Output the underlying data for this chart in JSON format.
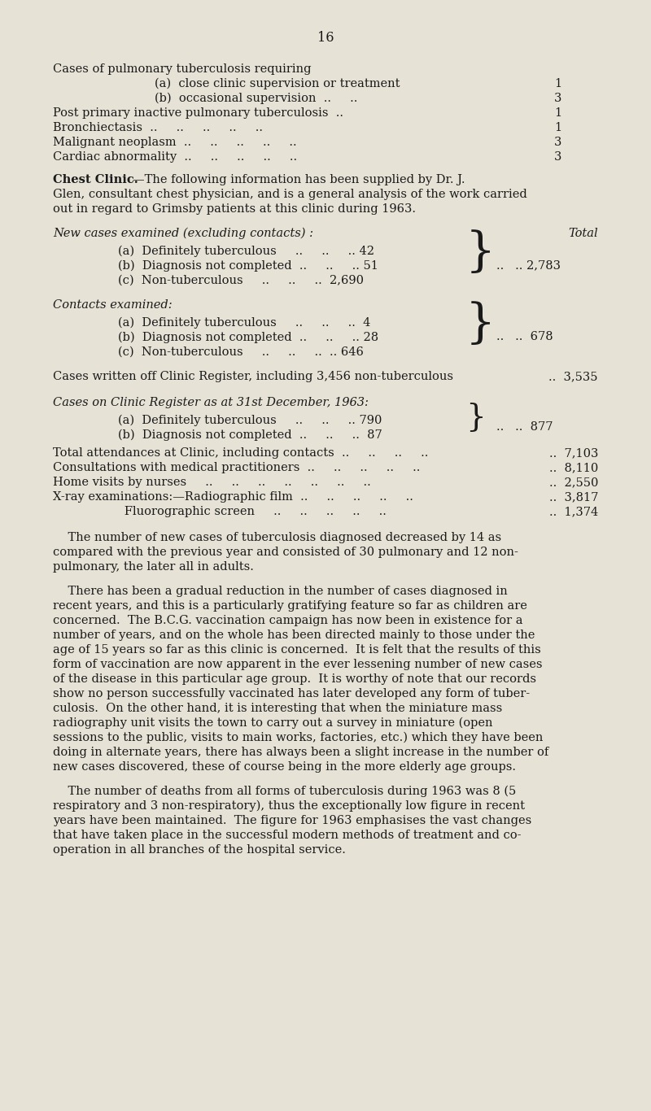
{
  "page_number": "16",
  "bg_color": "#e6e2d6",
  "text_color": "#1a1a1a",
  "fs": 10.5,
  "fs_small": 10.0,
  "lh": 18.0,
  "top_section": [
    {
      "indent": false,
      "text": "Cases of pulmonary tuberculosis requiring",
      "value": ""
    },
    {
      "indent": true,
      "text": "(a)  close clinic supervision or treatment",
      "value": "1"
    },
    {
      "indent": true,
      "text": "(b)  occasional supervision  ..     ..",
      "value": "3"
    },
    {
      "indent": false,
      "text": "Post primary inactive pulmonary tuberculosis  ..",
      "value": "1"
    },
    {
      "indent": false,
      "text": "Bronchiectasis  ..     ..     ..     ..     ..",
      "value": "1"
    },
    {
      "indent": false,
      "text": "Malignant neoplasm  ..     ..     ..     ..     ..",
      "value": "3"
    },
    {
      "indent": false,
      "text": "Cardiac abnormality  ..     ..     ..     ..     ..",
      "value": "3"
    }
  ],
  "chest_bold": "Chest Clinic.",
  "chest_rest": "—The following information has been supplied by Dr. J.",
  "chest_line2": "Glen, consultant chest physician, and is a general analysis of the work carried",
  "chest_line3": "out in regard to Grimsby patients at this clinic during 1963.",
  "new_cases_header": "New cases examined (excluding contacts) :",
  "new_cases_total_label": "Total",
  "new_cases_items": [
    {
      "text": "(a)  Definitely tuberculous     ..     ..     .. 42"
    },
    {
      "text": "(b)  Diagnosis not completed  ..     ..     .. 51"
    },
    {
      "text": "(c)  Non-tuberculous     ..     ..     ..  2,690"
    }
  ],
  "new_cases_total": "..   .. 2,783",
  "contacts_header": "Contacts examined:",
  "contacts_items": [
    {
      "text": "(a)  Definitely tuberculous     ..     ..     ..  4"
    },
    {
      "text": "(b)  Diagnosis not completed  ..     ..     .. 28"
    },
    {
      "text": "(c)  Non-tuberculous     ..     ..     ..  .. 646"
    }
  ],
  "contacts_total": "..   ..  678",
  "written_off_text": "Cases written off Clinic Register, including 3,456 non-tuberculous",
  "written_off_value": "..  3,535",
  "register_header": "Cases on Clinic Register as at 31st December, 1963:",
  "register_items": [
    {
      "text": "(a)  Definitely tuberculous     ..     ..     .. 790"
    },
    {
      "text": "(b)  Diagnosis not completed  ..     ..     ..  87"
    }
  ],
  "register_total": "..   ..  877",
  "stat_lines": [
    {
      "text": "Total attendances at Clinic, including contacts  ..     ..     ..     ..",
      "value": "..  7,103"
    },
    {
      "text": "Consultations with medical practitioners  ..     ..     ..     ..     ..",
      "value": "..  8,110"
    },
    {
      "text": "Home visits by nurses     ..     ..     ..     ..     ..     ..     ..",
      "value": "..  2,550"
    },
    {
      "text": "X-ray examinations:—Radiographic film  ..     ..     ..     ..     ..",
      "value": "..  3,817"
    },
    {
      "text": "                   Fluorographic screen     ..     ..     ..     ..     ..",
      "value": "..  1,374"
    }
  ],
  "para1_lines": [
    "    The number of new cases of tuberculosis diagnosed decreased by 14 as",
    "compared with the previous year and consisted of 30 pulmonary and 12 non-",
    "pulmonary, the later all in adults."
  ],
  "para2_lines": [
    "    There has been a gradual reduction in the number of cases diagnosed in",
    "recent years, and this is a particularly gratifying feature so far as children are",
    "concerned.  The B.C.G. vaccination campaign has now been in existence for a",
    "number of years, and on the whole has been directed mainly to those under the",
    "age of 15 years so far as this clinic is concerned.  It is felt that the results of this",
    "form of vaccination are now apparent in the ever lessening number of new cases",
    "of the disease in this particular age group.  It is worthy of note that our records",
    "show no person successfully vaccinated has later developed any form of tuber-",
    "culosis.  On the other hand, it is interesting that when the miniature mass",
    "radiography unit visits the town to carry out a survey in miniature (open",
    "sessions to the public, visits to main works, factories, etc.) which they have been",
    "doing in alternate years, there has always been a slight increase in the number of",
    "new cases discovered, these of course being in the more elderly age groups."
  ],
  "para3_lines": [
    "    The number of deaths from all forms of tuberculosis during 1963 was 8 (5",
    "respiratory and 3 non-respiratory), thus the exceptionally low figure in recent",
    "years have been maintained.  The figure for 1963 emphasises the vast changes",
    "that have taken place in the successful modern methods of treatment and co-",
    "operation in all branches of the hospital service."
  ]
}
